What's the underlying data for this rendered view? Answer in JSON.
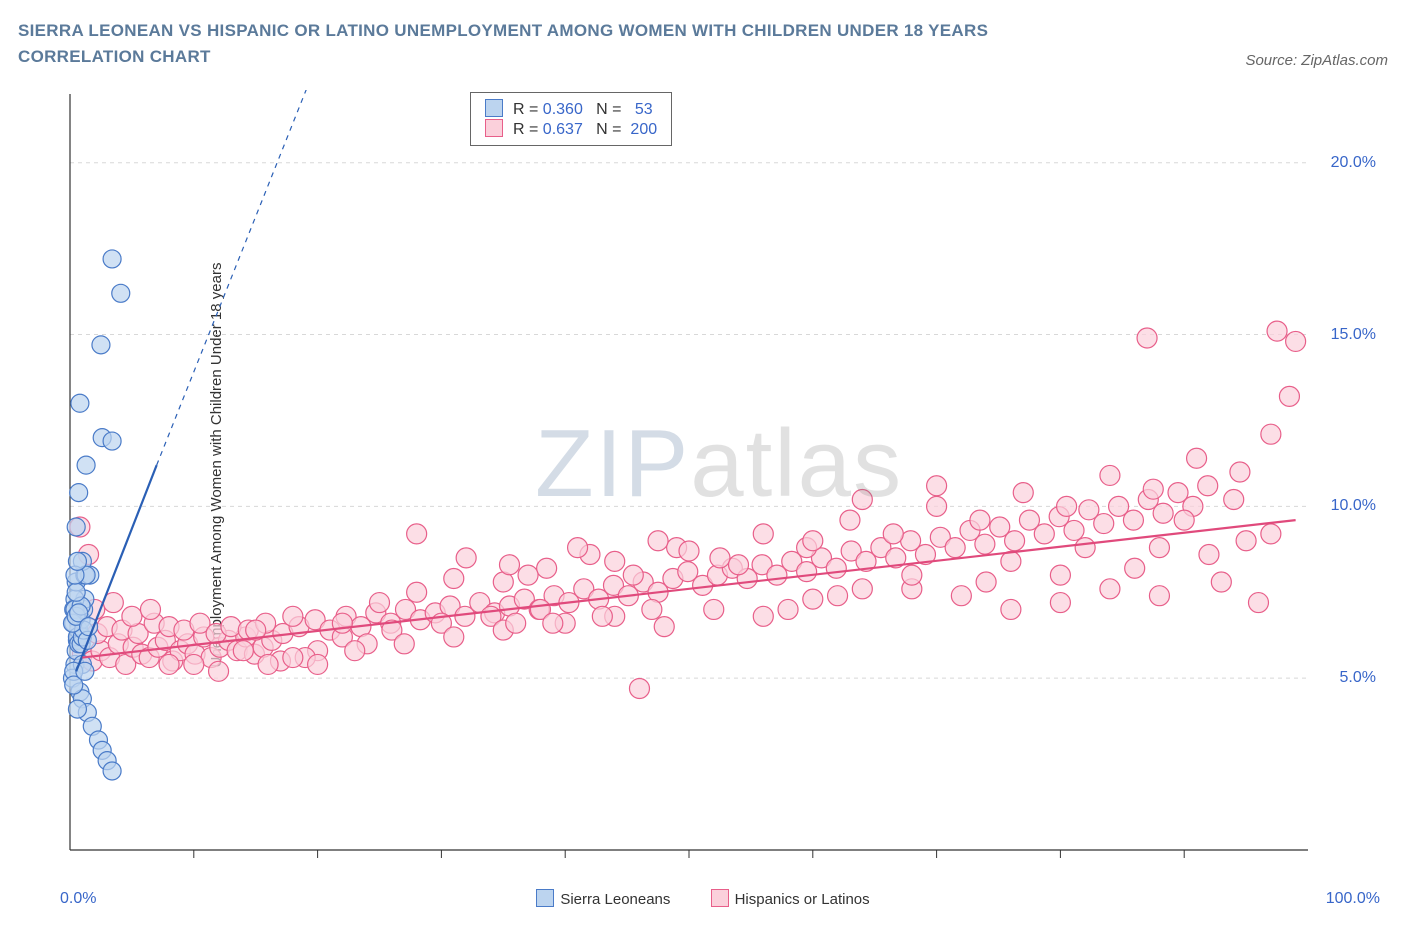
{
  "header": {
    "title": "SIERRA LEONEAN VS HISPANIC OR LATINO UNEMPLOYMENT AMONG WOMEN WITH CHILDREN UNDER 18 YEARS CORRELATION CHART",
    "source": "Source: ZipAtlas.com"
  },
  "axes": {
    "y_label": "Unemployment Among Women with Children Under 18 years",
    "x_min": 0,
    "x_max": 100,
    "y_min": 0,
    "y_max": 22,
    "x_ticks": [
      10,
      20,
      30,
      40,
      50,
      60,
      70,
      80,
      90
    ],
    "y_ticks": [
      {
        "v": 5,
        "label": "5.0%"
      },
      {
        "v": 10,
        "label": "10.0%"
      },
      {
        "v": 15,
        "label": "15.0%"
      },
      {
        "v": 20,
        "label": "20.0%"
      }
    ],
    "x_left_label": "0.0%",
    "x_right_label": "100.0%",
    "grid_color": "#d8d8d8",
    "axis_color": "#333333",
    "tick_label_color": "#3866c9"
  },
  "legend_bottom": {
    "series1": {
      "label": "Sierra Leoneans",
      "fill": "#bcd4ef",
      "stroke": "#4a7bc8"
    },
    "series2": {
      "label": "Hispanics or Latinos",
      "fill": "#fbd0db",
      "stroke": "#e85f8a"
    }
  },
  "stats_box": {
    "rows": [
      {
        "fill": "#bcd4ef",
        "stroke": "#4a7bc8",
        "R": "0.360",
        "N": "53"
      },
      {
        "fill": "#fbd0db",
        "stroke": "#e85f8a",
        "R": "0.637",
        "N": "200"
      }
    ],
    "R_label": "R =",
    "N_label": "N ="
  },
  "watermark": {
    "zip": "ZIP",
    "atlas": "atlas"
  },
  "series": {
    "blue": {
      "fill": "#bcd4ef",
      "stroke": "#4a7bc8",
      "r": 9,
      "trend": {
        "x1": 0.5,
        "y1": 5.2,
        "x2": 7,
        "y2": 11.2,
        "dash_x2": 30,
        "dash_y2": 32,
        "color": "#2a5fb5",
        "width": 2.2
      },
      "points": [
        [
          0.4,
          5.4
        ],
        [
          0.5,
          5.8
        ],
        [
          0.6,
          6.1
        ],
        [
          0.7,
          6.4
        ],
        [
          0.3,
          6.6
        ],
        [
          0.9,
          6.7
        ],
        [
          1.0,
          5.4
        ],
        [
          1.1,
          7.0
        ],
        [
          1.2,
          7.3
        ],
        [
          0.4,
          7.3
        ],
        [
          0.5,
          7.8
        ],
        [
          0.2,
          5.0
        ],
        [
          0.3,
          5.2
        ],
        [
          0.8,
          4.6
        ],
        [
          1.0,
          4.4
        ],
        [
          1.4,
          4.0
        ],
        [
          1.8,
          3.6
        ],
        [
          2.3,
          3.2
        ],
        [
          2.6,
          2.9
        ],
        [
          3.0,
          2.6
        ],
        [
          3.4,
          2.3
        ],
        [
          0.6,
          4.1
        ],
        [
          1.2,
          8.0
        ],
        [
          1.6,
          8.0
        ],
        [
          1.0,
          8.4
        ],
        [
          1.3,
          8.0
        ],
        [
          0.5,
          9.4
        ],
        [
          0.7,
          10.4
        ],
        [
          1.3,
          11.2
        ],
        [
          2.6,
          12.0
        ],
        [
          3.4,
          11.9
        ],
        [
          0.8,
          13.0
        ],
        [
          2.5,
          14.7
        ],
        [
          4.1,
          16.2
        ],
        [
          3.4,
          17.2
        ],
        [
          0.3,
          7.0
        ],
        [
          0.4,
          7.0
        ],
        [
          0.6,
          6.2
        ],
        [
          0.7,
          6.0
        ],
        [
          0.9,
          6.0
        ],
        [
          1.0,
          6.2
        ],
        [
          1.1,
          6.4
        ],
        [
          1.4,
          6.1
        ],
        [
          0.2,
          6.6
        ],
        [
          0.5,
          6.8
        ],
        [
          0.9,
          7.1
        ],
        [
          0.5,
          7.5
        ],
        [
          0.7,
          6.9
        ],
        [
          0.4,
          8.0
        ],
        [
          0.6,
          8.4
        ],
        [
          0.3,
          4.8
        ],
        [
          1.2,
          5.2
        ],
        [
          1.5,
          6.5
        ]
      ]
    },
    "pink": {
      "fill": "#fbd0db",
      "stroke": "#e85f8a",
      "r": 10,
      "trend": {
        "x1": 1,
        "y1": 5.6,
        "x2": 99,
        "y2": 9.6,
        "color": "#e04a7c",
        "width": 2.2
      },
      "points": [
        [
          1.0,
          5.7
        ],
        [
          1.8,
          5.5
        ],
        [
          2.5,
          5.8
        ],
        [
          3.2,
          5.6
        ],
        [
          3.9,
          6.0
        ],
        [
          4.5,
          5.4
        ],
        [
          5.1,
          5.9
        ],
        [
          5.8,
          5.7
        ],
        [
          6.4,
          5.6
        ],
        [
          7.1,
          5.9
        ],
        [
          7.7,
          6.1
        ],
        [
          8.3,
          5.5
        ],
        [
          8.9,
          5.8
        ],
        [
          9.5,
          6.0
        ],
        [
          10.1,
          5.7
        ],
        [
          10.8,
          6.2
        ],
        [
          11.4,
          5.6
        ],
        [
          12.1,
          5.9
        ],
        [
          12.8,
          6.1
        ],
        [
          13.5,
          5.8
        ],
        [
          14.2,
          6.2
        ],
        [
          14.9,
          5.7
        ],
        [
          15.6,
          5.9
        ],
        [
          16.3,
          6.1
        ],
        [
          17.0,
          5.5
        ],
        [
          2.2,
          6.3
        ],
        [
          3.0,
          6.5
        ],
        [
          4.2,
          6.4
        ],
        [
          5.5,
          6.3
        ],
        [
          6.8,
          6.6
        ],
        [
          8.0,
          6.5
        ],
        [
          9.2,
          6.4
        ],
        [
          10.5,
          6.6
        ],
        [
          11.8,
          6.3
        ],
        [
          13.0,
          6.5
        ],
        [
          14.4,
          6.4
        ],
        [
          15.8,
          6.6
        ],
        [
          17.2,
          6.3
        ],
        [
          18.5,
          6.5
        ],
        [
          19.8,
          6.7
        ],
        [
          21.0,
          6.4
        ],
        [
          22.3,
          6.8
        ],
        [
          23.5,
          6.5
        ],
        [
          24.7,
          6.9
        ],
        [
          25.9,
          6.6
        ],
        [
          27.1,
          7.0
        ],
        [
          28.3,
          6.7
        ],
        [
          29.5,
          6.9
        ],
        [
          30.7,
          7.1
        ],
        [
          31.9,
          6.8
        ],
        [
          33.1,
          7.2
        ],
        [
          34.3,
          6.9
        ],
        [
          35.5,
          7.1
        ],
        [
          36.7,
          7.3
        ],
        [
          37.9,
          7.0
        ],
        [
          39.1,
          7.4
        ],
        [
          40.3,
          7.2
        ],
        [
          41.5,
          7.6
        ],
        [
          42.7,
          7.3
        ],
        [
          43.9,
          7.7
        ],
        [
          45.1,
          7.4
        ],
        [
          46.3,
          7.8
        ],
        [
          47.5,
          7.5
        ],
        [
          48.7,
          7.9
        ],
        [
          49.9,
          8.1
        ],
        [
          51.1,
          7.7
        ],
        [
          52.3,
          8.0
        ],
        [
          53.5,
          8.2
        ],
        [
          54.7,
          7.9
        ],
        [
          55.9,
          8.3
        ],
        [
          57.1,
          8.0
        ],
        [
          58.3,
          8.4
        ],
        [
          59.5,
          8.1
        ],
        [
          60.7,
          8.5
        ],
        [
          61.9,
          8.2
        ],
        [
          63.1,
          8.7
        ],
        [
          64.3,
          8.4
        ],
        [
          65.5,
          8.8
        ],
        [
          66.7,
          8.5
        ],
        [
          67.9,
          9.0
        ],
        [
          69.1,
          8.6
        ],
        [
          70.3,
          9.1
        ],
        [
          71.5,
          8.8
        ],
        [
          72.7,
          9.3
        ],
        [
          73.9,
          8.9
        ],
        [
          75.1,
          9.4
        ],
        [
          76.3,
          9.0
        ],
        [
          77.5,
          9.6
        ],
        [
          78.7,
          9.2
        ],
        [
          79.9,
          9.7
        ],
        [
          81.1,
          9.3
        ],
        [
          82.3,
          9.9
        ],
        [
          83.5,
          9.5
        ],
        [
          84.7,
          10.0
        ],
        [
          85.9,
          9.6
        ],
        [
          87.1,
          10.2
        ],
        [
          88.3,
          9.8
        ],
        [
          89.5,
          10.4
        ],
        [
          90.7,
          10.0
        ],
        [
          91.9,
          10.6
        ],
        [
          28.0,
          9.2
        ],
        [
          32.0,
          8.5
        ],
        [
          35.0,
          7.8
        ],
        [
          38.5,
          8.2
        ],
        [
          42.0,
          8.6
        ],
        [
          45.5,
          8.0
        ],
        [
          49.0,
          8.8
        ],
        [
          52.5,
          8.5
        ],
        [
          56.0,
          9.2
        ],
        [
          59.5,
          8.8
        ],
        [
          63.0,
          9.6
        ],
        [
          66.5,
          9.2
        ],
        [
          70.0,
          10.0
        ],
        [
          73.5,
          9.6
        ],
        [
          77.0,
          10.4
        ],
        [
          80.5,
          10.0
        ],
        [
          84.0,
          10.9
        ],
        [
          87.5,
          10.5
        ],
        [
          91.0,
          11.4
        ],
        [
          94.5,
          11.0
        ],
        [
          46.0,
          4.7
        ],
        [
          58.0,
          7.0
        ],
        [
          62.0,
          7.4
        ],
        [
          68.0,
          7.6
        ],
        [
          74.0,
          7.8
        ],
        [
          80.0,
          8.0
        ],
        [
          86.0,
          8.2
        ],
        [
          92.0,
          8.6
        ],
        [
          95.0,
          9.0
        ],
        [
          97.0,
          9.2
        ],
        [
          50.0,
          8.7
        ],
        [
          54.0,
          8.3
        ],
        [
          60.0,
          9.0
        ],
        [
          64.0,
          10.2
        ],
        [
          70.0,
          10.6
        ],
        [
          76.0,
          8.4
        ],
        [
          82.0,
          8.8
        ],
        [
          88.0,
          7.4
        ],
        [
          93.0,
          7.8
        ],
        [
          96.0,
          7.2
        ],
        [
          40.0,
          6.6
        ],
        [
          44.0,
          6.8
        ],
        [
          48.0,
          6.5
        ],
        [
          52.0,
          7.0
        ],
        [
          56.0,
          6.8
        ],
        [
          60.0,
          7.3
        ],
        [
          64.0,
          7.6
        ],
        [
          68.0,
          8.0
        ],
        [
          72.0,
          7.4
        ],
        [
          76.0,
          7.0
        ],
        [
          80.0,
          7.2
        ],
        [
          84.0,
          7.6
        ],
        [
          88.0,
          8.8
        ],
        [
          90.0,
          9.6
        ],
        [
          94.0,
          10.2
        ],
        [
          87.0,
          14.9
        ],
        [
          97.5,
          15.1
        ],
        [
          99.0,
          14.8
        ],
        [
          98.5,
          13.2
        ],
        [
          97.0,
          12.1
        ],
        [
          20.0,
          5.8
        ],
        [
          24.0,
          6.0
        ],
        [
          18.0,
          6.8
        ],
        [
          22.0,
          6.2
        ],
        [
          26.0,
          6.4
        ],
        [
          30.0,
          6.6
        ],
        [
          34.0,
          6.8
        ],
        [
          38.0,
          7.0
        ],
        [
          15.0,
          6.4
        ],
        [
          19.0,
          5.6
        ],
        [
          23.0,
          5.8
        ],
        [
          27.0,
          6.0
        ],
        [
          31.0,
          6.2
        ],
        [
          35.0,
          6.4
        ],
        [
          39.0,
          6.6
        ],
        [
          43.0,
          6.8
        ],
        [
          47.0,
          7.0
        ],
        [
          0.8,
          9.4
        ],
        [
          1.5,
          8.6
        ],
        [
          2.0,
          7.0
        ],
        [
          3.5,
          7.2
        ],
        [
          5.0,
          6.8
        ],
        [
          6.5,
          7.0
        ],
        [
          8.0,
          5.4
        ],
        [
          10.0,
          5.4
        ],
        [
          12.0,
          5.2
        ],
        [
          14.0,
          5.8
        ],
        [
          16.0,
          5.4
        ],
        [
          18.0,
          5.6
        ],
        [
          20.0,
          5.4
        ],
        [
          22.0,
          6.6
        ],
        [
          25.0,
          7.2
        ],
        [
          28.0,
          7.5
        ],
        [
          31.0,
          7.9
        ],
        [
          35.5,
          8.3
        ],
        [
          36.0,
          6.6
        ],
        [
          37.0,
          8.0
        ],
        [
          41.0,
          8.8
        ],
        [
          44.0,
          8.4
        ],
        [
          47.5,
          9.0
        ]
      ]
    }
  }
}
